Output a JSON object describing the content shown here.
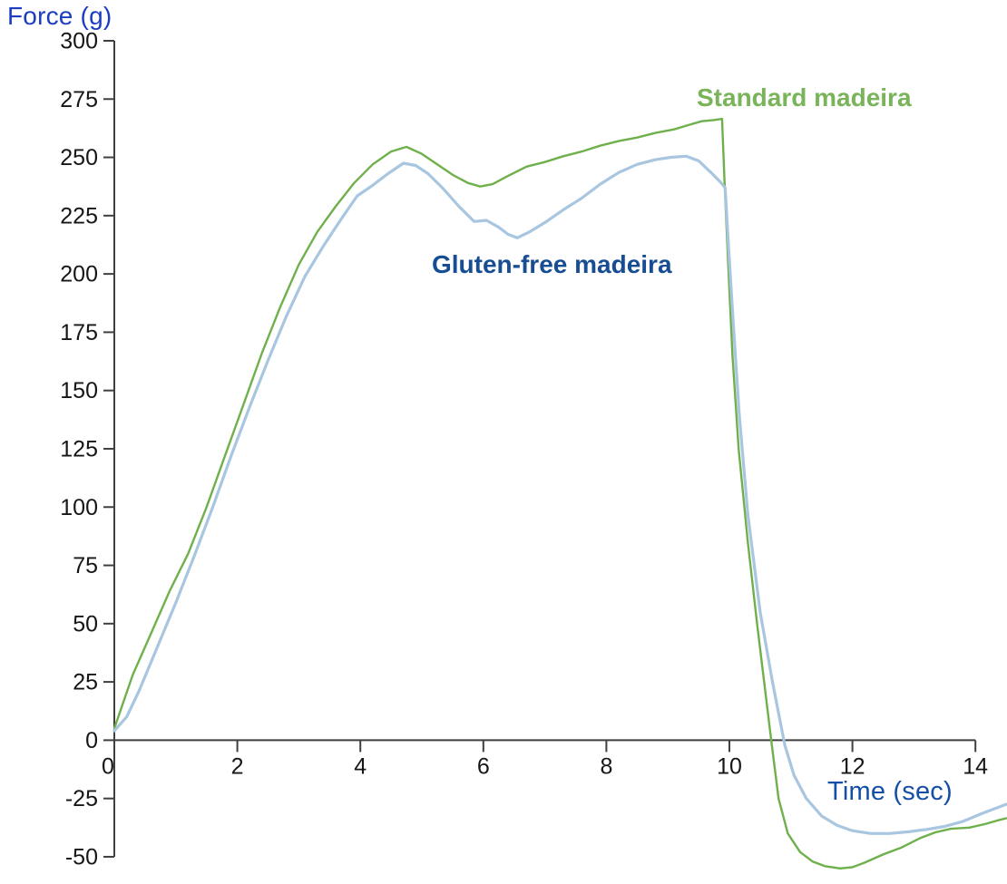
{
  "chart_data": {
    "type": "line",
    "title": "",
    "xlabel": "Time (sec)",
    "ylabel": "Force (g)",
    "xlabel_color": "#154fa5",
    "ylabel_color": "#1b3ec1",
    "axis_color": "#3f3f3f",
    "tick_label_color": "#161616",
    "xlim": [
      0,
      14.5
    ],
    "ylim": [
      -50,
      300
    ],
    "x_ticks": [
      0,
      2,
      4,
      6,
      8,
      10,
      12,
      14
    ],
    "y_ticks": [
      300,
      275,
      250,
      225,
      200,
      175,
      150,
      125,
      100,
      75,
      50,
      25,
      0,
      -25,
      -50
    ],
    "grid": false,
    "legend_position": "inline-annotations",
    "series": [
      {
        "id": "standard-madeira",
        "name": "Standard madeira",
        "color": "#6fb04c",
        "label_color": "#79b45b",
        "points": [
          [
            0,
            5
          ],
          [
            0.3,
            28
          ],
          [
            0.6,
            46
          ],
          [
            0.9,
            64
          ],
          [
            1.2,
            80
          ],
          [
            1.5,
            100
          ],
          [
            1.8,
            122
          ],
          [
            2.1,
            144
          ],
          [
            2.4,
            166
          ],
          [
            2.7,
            186
          ],
          [
            3.0,
            204
          ],
          [
            3.3,
            218
          ],
          [
            3.6,
            229
          ],
          [
            3.9,
            239
          ],
          [
            4.2,
            247
          ],
          [
            4.5,
            252.5
          ],
          [
            4.75,
            254.5
          ],
          [
            5.0,
            251.5
          ],
          [
            5.25,
            247
          ],
          [
            5.5,
            242.5
          ],
          [
            5.75,
            239
          ],
          [
            5.95,
            237.5
          ],
          [
            6.15,
            238.5
          ],
          [
            6.4,
            242
          ],
          [
            6.7,
            246
          ],
          [
            7.0,
            248
          ],
          [
            7.3,
            250.5
          ],
          [
            7.6,
            252.5
          ],
          [
            7.9,
            255
          ],
          [
            8.2,
            257
          ],
          [
            8.5,
            258.5
          ],
          [
            8.8,
            260.5
          ],
          [
            9.1,
            262
          ],
          [
            9.35,
            264
          ],
          [
            9.55,
            265.5
          ],
          [
            9.75,
            266
          ],
          [
            9.88,
            266.5
          ],
          [
            9.92,
            240
          ],
          [
            9.98,
            205
          ],
          [
            10.05,
            165
          ],
          [
            10.15,
            125
          ],
          [
            10.3,
            85
          ],
          [
            10.45,
            50
          ],
          [
            10.68,
            0
          ],
          [
            10.8,
            -25
          ],
          [
            10.95,
            -40
          ],
          [
            11.15,
            -48
          ],
          [
            11.35,
            -52
          ],
          [
            11.55,
            -54
          ],
          [
            11.8,
            -55
          ],
          [
            12.0,
            -54.5
          ],
          [
            12.2,
            -52.5
          ],
          [
            12.5,
            -49
          ],
          [
            12.8,
            -46
          ],
          [
            13.1,
            -42
          ],
          [
            13.35,
            -39.5
          ],
          [
            13.6,
            -38
          ],
          [
            13.9,
            -37.5
          ],
          [
            14.15,
            -36
          ],
          [
            14.35,
            -34.5
          ],
          [
            14.5,
            -33.5
          ]
        ]
      },
      {
        "id": "gluten-free-madeira",
        "name": "Gluten-free madeira",
        "color": "#a8c6e0",
        "label_color": "#174d92",
        "points": [
          [
            0,
            4
          ],
          [
            0.2,
            10
          ],
          [
            0.4,
            21
          ],
          [
            0.7,
            40
          ],
          [
            1.0,
            59
          ],
          [
            1.3,
            79
          ],
          [
            1.6,
            100
          ],
          [
            1.9,
            122
          ],
          [
            2.2,
            143
          ],
          [
            2.5,
            163
          ],
          [
            2.8,
            182
          ],
          [
            3.1,
            199
          ],
          [
            3.4,
            212
          ],
          [
            3.7,
            224
          ],
          [
            3.95,
            233.5
          ],
          [
            4.2,
            238
          ],
          [
            4.45,
            243
          ],
          [
            4.7,
            247.5
          ],
          [
            4.9,
            246.5
          ],
          [
            5.1,
            243
          ],
          [
            5.35,
            236.5
          ],
          [
            5.6,
            229
          ],
          [
            5.85,
            222.5
          ],
          [
            6.05,
            223
          ],
          [
            6.25,
            220
          ],
          [
            6.4,
            217
          ],
          [
            6.55,
            215.5
          ],
          [
            6.75,
            218
          ],
          [
            7.0,
            222
          ],
          [
            7.3,
            227.5
          ],
          [
            7.6,
            232.5
          ],
          [
            7.9,
            238.5
          ],
          [
            8.2,
            243.5
          ],
          [
            8.5,
            247
          ],
          [
            8.8,
            249
          ],
          [
            9.05,
            250
          ],
          [
            9.3,
            250.5
          ],
          [
            9.5,
            248.5
          ],
          [
            9.7,
            243.5
          ],
          [
            9.85,
            239.5
          ],
          [
            9.93,
            237
          ],
          [
            9.99,
            210
          ],
          [
            10.06,
            180
          ],
          [
            10.16,
            140
          ],
          [
            10.3,
            97
          ],
          [
            10.5,
            55
          ],
          [
            10.7,
            25
          ],
          [
            10.9,
            -2
          ],
          [
            11.05,
            -15
          ],
          [
            11.25,
            -25
          ],
          [
            11.5,
            -32.5
          ],
          [
            11.75,
            -36.5
          ],
          [
            12.0,
            -38.8
          ],
          [
            12.3,
            -40
          ],
          [
            12.6,
            -40
          ],
          [
            12.9,
            -39.3
          ],
          [
            13.2,
            -38.3
          ],
          [
            13.5,
            -37
          ],
          [
            13.8,
            -34.8
          ],
          [
            14.1,
            -31.5
          ],
          [
            14.3,
            -29.5
          ],
          [
            14.5,
            -27.5
          ]
        ]
      }
    ]
  }
}
